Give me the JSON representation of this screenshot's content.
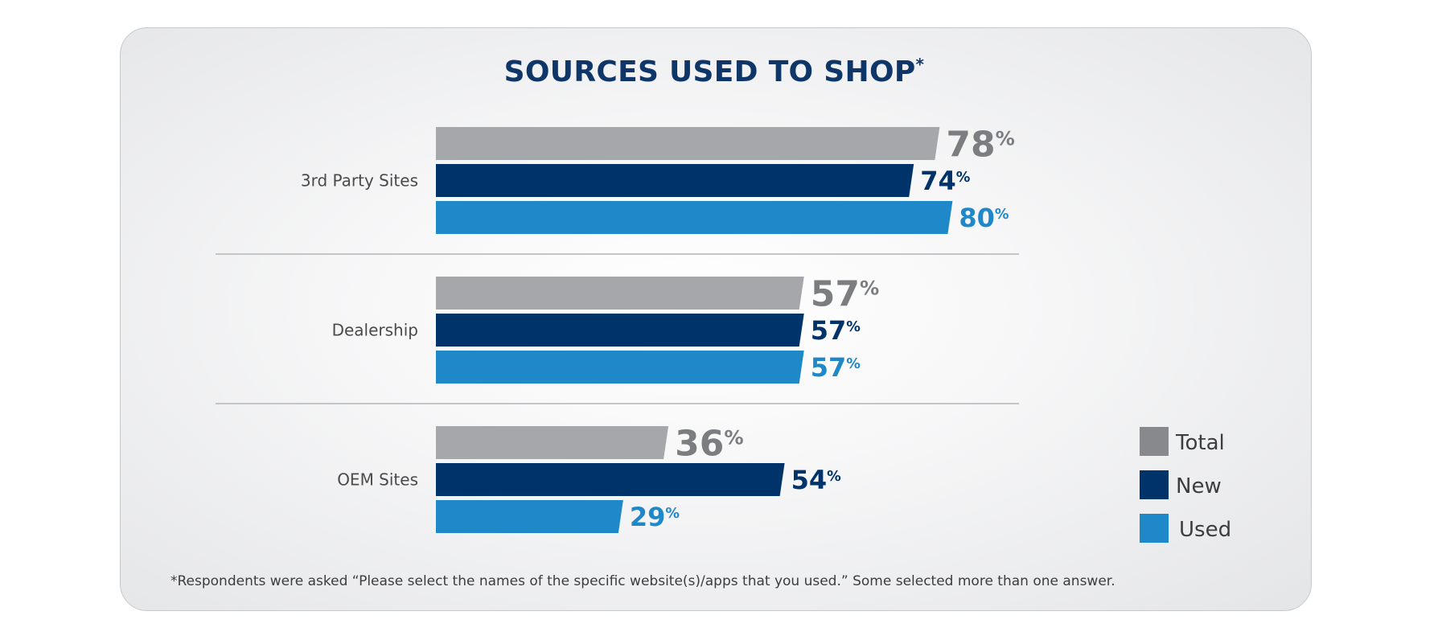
{
  "chart_data": {
    "type": "bar",
    "orientation": "horizontal",
    "title": "SOURCES USED TO SHOP",
    "title_mark": "*",
    "categories": [
      "3rd Party Sites",
      "Dealership",
      "OEM Sites"
    ],
    "series": [
      {
        "name": "Total",
        "values": [
          78,
          57,
          36
        ],
        "color": "#a6a7ab"
      },
      {
        "name": "New",
        "values": [
          74,
          57,
          54
        ],
        "color": "#00336a"
      },
      {
        "name": "Used",
        "values": [
          80,
          57,
          29
        ],
        "color": "#1e88c9"
      }
    ],
    "value_suffix": "%",
    "label_colors": [
      "#7c7d80",
      "#00336a",
      "#1e88c9"
    ],
    "legend_position": "bottom-right",
    "grid": false,
    "xlim": [
      0,
      100
    ],
    "footnote": "*Respondents were asked “Please select the names of the specific website(s)/apps that you used.” Some selected more than one answer."
  }
}
